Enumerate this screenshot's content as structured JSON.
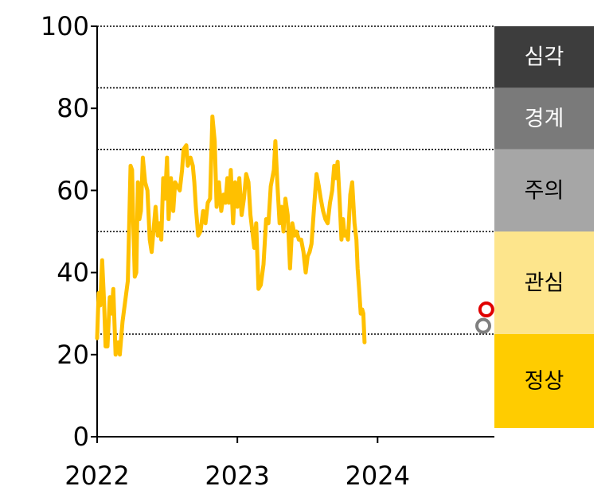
{
  "chart_data": {
    "type": "line",
    "title": "",
    "xlabel": "",
    "ylabel": "",
    "ylim": [
      0,
      100
    ],
    "xlim": [
      "2022-01-01",
      "2024-10-31"
    ],
    "y_ticks": [
      "0",
      "20",
      "40",
      "60",
      "80",
      "100"
    ],
    "x_ticks": [
      {
        "label": "2022",
        "date": "2022-01-01"
      },
      {
        "label": "2023",
        "date": "2023-01-01"
      },
      {
        "label": "2024",
        "date": "2024-01-01"
      }
    ],
    "threshold_lines": [
      25,
      50,
      70,
      85,
      100
    ],
    "zones": [
      {
        "label": "심각",
        "from": 85,
        "to": 100,
        "color": "#3d3d3d",
        "text_color": "#ffffff"
      },
      {
        "label": "경계",
        "from": 70,
        "to": 85,
        "color": "#7a7a7a",
        "text_color": "#ffffff"
      },
      {
        "label": "주의",
        "from": 50,
        "to": 70,
        "color": "#a6a6a6",
        "text_color": "#000000"
      },
      {
        "label": "관심",
        "from": 25,
        "to": 50,
        "color": "#fde58c",
        "text_color": "#000000"
      },
      {
        "label": "정상",
        "from": 0,
        "to": 25,
        "color": "#ffcc00",
        "text_color": "#000000"
      }
    ],
    "series": [
      {
        "color": "#ffc000",
        "points": [
          [
            "2022-01-01",
            24
          ],
          [
            "2022-01-05",
            35
          ],
          [
            "2022-01-09",
            32
          ],
          [
            "2022-01-14",
            43
          ],
          [
            "2022-01-19",
            33
          ],
          [
            "2022-01-23",
            22
          ],
          [
            "2022-01-28",
            22
          ],
          [
            "2022-02-03",
            34
          ],
          [
            "2022-02-08",
            30
          ],
          [
            "2022-02-12",
            36
          ],
          [
            "2022-02-18",
            20
          ],
          [
            "2022-02-25",
            23
          ],
          [
            "2022-03-01",
            20
          ],
          [
            "2022-03-08",
            28
          ],
          [
            "2022-03-22",
            38
          ],
          [
            "2022-03-29",
            66
          ],
          [
            "2022-04-02",
            65
          ],
          [
            "2022-04-05",
            52
          ],
          [
            "2022-04-09",
            39
          ],
          [
            "2022-04-13",
            40
          ],
          [
            "2022-04-17",
            62
          ],
          [
            "2022-04-21",
            53
          ],
          [
            "2022-04-25",
            55
          ],
          [
            "2022-04-30",
            68
          ],
          [
            "2022-05-06",
            62
          ],
          [
            "2022-05-12",
            60
          ],
          [
            "2022-05-18",
            48
          ],
          [
            "2022-05-23",
            45
          ],
          [
            "2022-06-02",
            56
          ],
          [
            "2022-06-08",
            49
          ],
          [
            "2022-06-12",
            52
          ],
          [
            "2022-06-17",
            48
          ],
          [
            "2022-06-22",
            63
          ],
          [
            "2022-06-27",
            58
          ],
          [
            "2022-07-02",
            68
          ],
          [
            "2022-07-06",
            53
          ],
          [
            "2022-07-12",
            63
          ],
          [
            "2022-07-18",
            55
          ],
          [
            "2022-07-23",
            62
          ],
          [
            "2022-07-29",
            61
          ],
          [
            "2022-08-04",
            60
          ],
          [
            "2022-08-10",
            65
          ],
          [
            "2022-08-14",
            70
          ],
          [
            "2022-08-21",
            71
          ],
          [
            "2022-08-25",
            66
          ],
          [
            "2022-09-01",
            68
          ],
          [
            "2022-09-07",
            66
          ],
          [
            "2022-09-11",
            62
          ],
          [
            "2022-09-15",
            56
          ],
          [
            "2022-09-21",
            49
          ],
          [
            "2022-09-27",
            50
          ],
          [
            "2022-10-04",
            55
          ],
          [
            "2022-10-10",
            52
          ],
          [
            "2022-10-16",
            57
          ],
          [
            "2022-10-22",
            58
          ],
          [
            "2022-10-28",
            78
          ],
          [
            "2022-11-03",
            72
          ],
          [
            "2022-11-08",
            56
          ],
          [
            "2022-11-14",
            62
          ],
          [
            "2022-11-20",
            55
          ],
          [
            "2022-11-26",
            59
          ],
          [
            "2022-12-01",
            57
          ],
          [
            "2022-12-06",
            63
          ],
          [
            "2022-12-10",
            57
          ],
          [
            "2022-12-15",
            65
          ],
          [
            "2022-12-21",
            52
          ],
          [
            "2022-12-26",
            62
          ],
          [
            "2023-01-01",
            56
          ],
          [
            "2023-01-06",
            63
          ],
          [
            "2023-01-12",
            54
          ],
          [
            "2023-01-18",
            58
          ],
          [
            "2023-01-24",
            64
          ],
          [
            "2023-01-30",
            62
          ],
          [
            "2023-02-04",
            54
          ],
          [
            "2023-02-09",
            50
          ],
          [
            "2023-02-14",
            46
          ],
          [
            "2023-02-19",
            52
          ],
          [
            "2023-02-25",
            36
          ],
          [
            "2023-03-03",
            37
          ],
          [
            "2023-03-10",
            42
          ],
          [
            "2023-03-17",
            53
          ],
          [
            "2023-03-23",
            52
          ],
          [
            "2023-03-29",
            61
          ],
          [
            "2023-04-06",
            65
          ],
          [
            "2023-04-10",
            72
          ],
          [
            "2023-04-15",
            62
          ],
          [
            "2023-04-21",
            52
          ],
          [
            "2023-04-26",
            56
          ],
          [
            "2023-05-01",
            50
          ],
          [
            "2023-05-06",
            58
          ],
          [
            "2023-05-12",
            54
          ],
          [
            "2023-05-18",
            41
          ],
          [
            "2023-05-24",
            52
          ],
          [
            "2023-05-30",
            49
          ],
          [
            "2023-06-04",
            50
          ],
          [
            "2023-06-10",
            48
          ],
          [
            "2023-06-16",
            48
          ],
          [
            "2023-06-22",
            45
          ],
          [
            "2023-06-28",
            40
          ],
          [
            "2023-07-03",
            44
          ],
          [
            "2023-07-08",
            45
          ],
          [
            "2023-07-13",
            47
          ],
          [
            "2023-07-19",
            55
          ],
          [
            "2023-07-26",
            64
          ],
          [
            "2023-08-01",
            61
          ],
          [
            "2023-08-06",
            58
          ],
          [
            "2023-08-12",
            55
          ],
          [
            "2023-08-18",
            53
          ],
          [
            "2023-08-24",
            52
          ],
          [
            "2023-08-30",
            57
          ],
          [
            "2023-09-05",
            60
          ],
          [
            "2023-09-10",
            66
          ],
          [
            "2023-09-14",
            63
          ],
          [
            "2023-09-19",
            67
          ],
          [
            "2023-09-24",
            58
          ],
          [
            "2023-09-29",
            48
          ],
          [
            "2023-10-03",
            53
          ],
          [
            "2023-10-07",
            49
          ],
          [
            "2023-10-11",
            50
          ],
          [
            "2023-10-16",
            48
          ],
          [
            "2023-10-22",
            59
          ],
          [
            "2023-10-27",
            62
          ],
          [
            "2023-11-02",
            52
          ],
          [
            "2023-11-07",
            48
          ],
          [
            "2023-11-10",
            41
          ],
          [
            "2023-11-14",
            36
          ],
          [
            "2023-11-18",
            30
          ],
          [
            "2023-11-22",
            31
          ],
          [
            "2023-11-25",
            30
          ],
          [
            "2023-11-28",
            23
          ]
        ]
      }
    ],
    "markers": [
      {
        "date": "2024-10-02",
        "value": 27,
        "color": "#7f7f7f"
      },
      {
        "date": "2024-10-10",
        "value": 31,
        "color": "#e00000"
      }
    ]
  }
}
